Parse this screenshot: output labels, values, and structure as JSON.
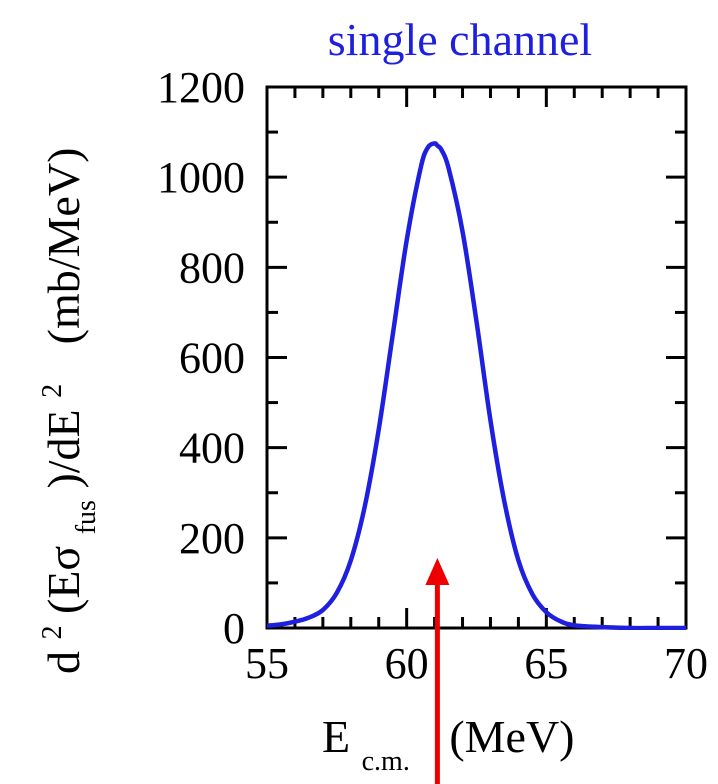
{
  "chart_data": {
    "type": "line",
    "title": "single channel",
    "title_color": "#1f1fe0",
    "xlabel": {
      "main": "E",
      "sub": "c.m.",
      "unit": "(MeV)"
    },
    "ylabel": {
      "prefix": "d",
      "sup1": "2",
      "paren": "(Eσ",
      "sub": "fus",
      "after": ")/dE",
      "sup2": "2",
      "unit": "(mb/MeV)"
    },
    "xlim": [
      55,
      70
    ],
    "ylim": [
      0,
      1200
    ],
    "x_ticks": [
      "55",
      "60",
      "65",
      "70"
    ],
    "y_ticks": [
      "0",
      "200",
      "400",
      "600",
      "800",
      "1000",
      "1200"
    ],
    "series": [
      {
        "color": "#1f1fe0",
        "x": [
          55,
          55.5,
          56,
          56.5,
          57,
          57.5,
          58,
          58.5,
          59,
          59.5,
          60,
          60.5,
          60.75,
          61,
          61.1,
          61.25,
          61.5,
          62,
          62.5,
          63,
          63.5,
          64,
          64.5,
          65,
          65.5,
          66,
          67,
          68,
          69,
          70
        ],
        "y": [
          5,
          8,
          14,
          23,
          40,
          78,
          150,
          270,
          440,
          650,
          860,
          1020,
          1065,
          1075,
          1070,
          1060,
          1020,
          880,
          680,
          460,
          280,
          150,
          75,
          35,
          15,
          6,
          2,
          0,
          0,
          0
        ]
      }
    ],
    "annotation": {
      "type": "arrow",
      "color": "#ee0000",
      "x": 61.1
    },
    "grid": false
  }
}
